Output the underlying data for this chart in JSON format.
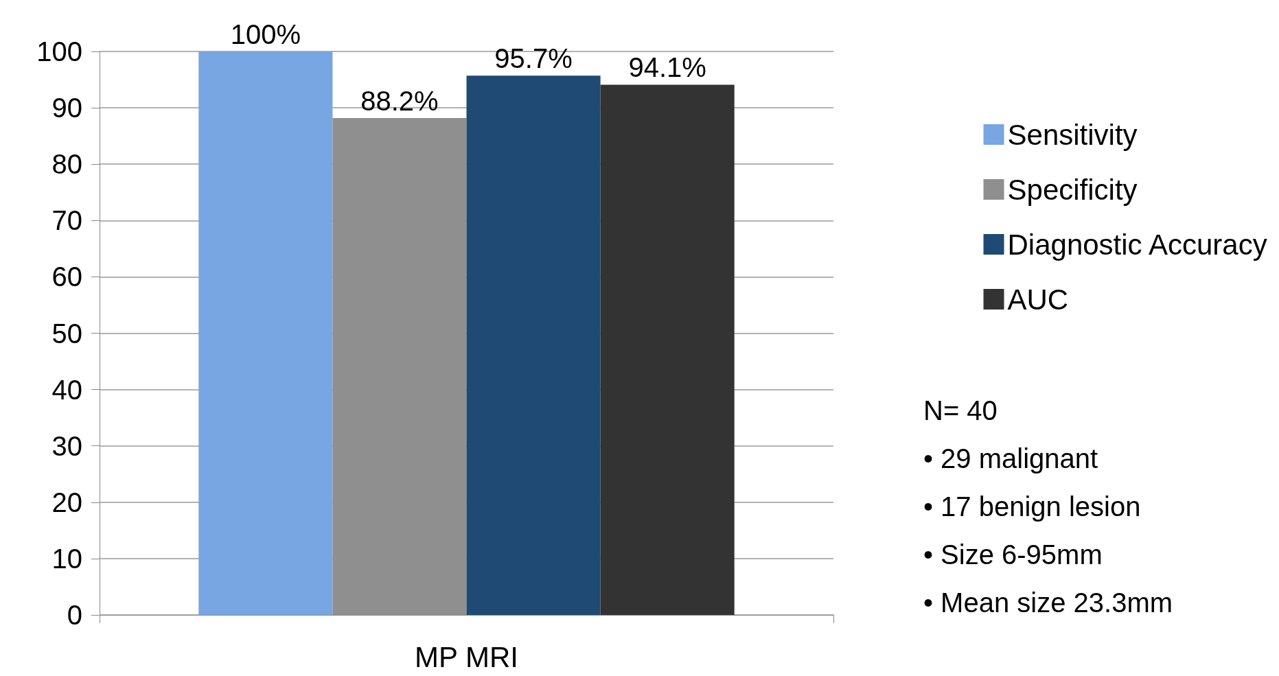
{
  "chart_data": {
    "type": "bar",
    "categories": [
      "MP MRI"
    ],
    "series": [
      {
        "name": "Sensitivity",
        "color": "#78a6e2",
        "values": [
          100
        ],
        "value_labels": [
          "100%"
        ]
      },
      {
        "name": "Specificity",
        "color": "#8f8f8f",
        "values": [
          88.2
        ],
        "value_labels": [
          "88.2%"
        ]
      },
      {
        "name": "Diagnostic Accuracy",
        "color": "#1f4a73",
        "values": [
          95.7
        ],
        "value_labels": [
          "95.7%"
        ]
      },
      {
        "name": "AUC",
        "color": "#333333",
        "values": [
          94.1
        ],
        "value_labels": [
          "94.1%"
        ]
      }
    ],
    "ylim": [
      0,
      100
    ],
    "yticks": [
      0,
      10,
      20,
      30,
      40,
      50,
      60,
      70,
      80,
      90,
      100
    ],
    "grid": "y",
    "legend": "right",
    "annotations": [
      "N= 40",
      "• 29 malignant",
      "• 17 benign lesion",
      "• Size 6-95mm",
      "• Mean size 23.3mm"
    ]
  }
}
